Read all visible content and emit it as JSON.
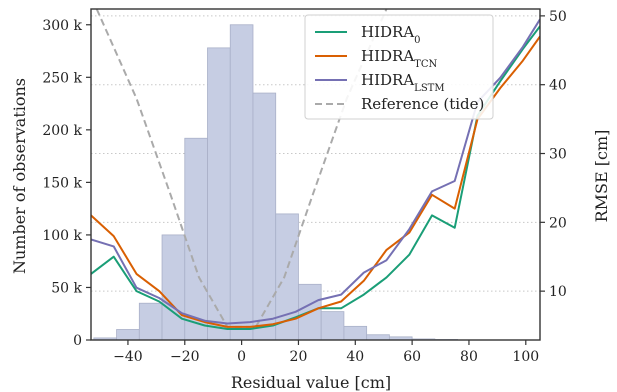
{
  "chart_data": {
    "type": "bar",
    "xlabel": "Residual value [cm]",
    "ylabel_left": "Number of observations",
    "ylabel_right": "RMSE [cm]",
    "xlim": [
      -53,
      105
    ],
    "ylim_left": [
      0,
      315000
    ],
    "ylim_right": [
      2.9,
      51
    ],
    "x_ticks": [
      -40,
      -20,
      0,
      20,
      40,
      60,
      80,
      100
    ],
    "x_tick_labels": [
      "−40",
      "−20",
      "0",
      "20",
      "40",
      "60",
      "80",
      "100"
    ],
    "left_ticks": [
      0,
      50000,
      100000,
      150000,
      200000,
      250000,
      300000
    ],
    "left_tick_labels": [
      "0",
      "50 k",
      "100 k",
      "150 k",
      "200 k",
      "250 k",
      "300 k"
    ],
    "right_ticks": [
      10,
      20,
      30,
      40,
      50
    ],
    "right_tick_labels": [
      "10",
      "20",
      "30",
      "40",
      "50"
    ],
    "grid": "dotted horizontal at right-axis ticks",
    "legend_position": "top-right",
    "histogram": {
      "bin_width": 8,
      "bin_centers": [
        -48,
        -40,
        -32,
        -24,
        -16,
        -8,
        0,
        8,
        16,
        24,
        32,
        40,
        48,
        56,
        64,
        72
      ],
      "counts": [
        2000,
        10000,
        35000,
        100000,
        192000,
        278000,
        300000,
        235000,
        120000,
        53000,
        27000,
        13000,
        5000,
        3000,
        1000,
        500
      ],
      "color": "#c6cde3"
    },
    "series": [
      {
        "name": "HIDRA",
        "subscript": "0",
        "color": "#1a9e77",
        "axis": "right",
        "x": [
          -53,
          -45,
          -37,
          -29,
          -21,
          -13,
          -5,
          3,
          11,
          19,
          27,
          35,
          43,
          51,
          59,
          67,
          75,
          83,
          91,
          99,
          105
        ],
        "y": [
          12.5,
          15.0,
          10.0,
          8.5,
          6.0,
          5.0,
          4.5,
          4.5,
          5.0,
          6.2,
          7.5,
          7.5,
          9.5,
          12.0,
          15.3,
          21.0,
          19.2,
          35.5,
          40.5,
          45.2,
          48.5
        ]
      },
      {
        "name": "HIDRA",
        "subscript": "TCN",
        "color": "#d95f02",
        "axis": "right",
        "x": [
          -53,
          -45,
          -37,
          -29,
          -21,
          -13,
          -5,
          3,
          11,
          19,
          27,
          35,
          43,
          51,
          59,
          67,
          75,
          83,
          91,
          99,
          105
        ],
        "y": [
          21.0,
          18.0,
          12.5,
          10.0,
          6.5,
          5.5,
          4.8,
          4.8,
          5.2,
          6.0,
          7.5,
          8.5,
          11.5,
          16.0,
          18.5,
          24.0,
          22.0,
          35.0,
          39.5,
          43.5,
          47.0
        ]
      },
      {
        "name": "HIDRA",
        "subscript": "LSTM",
        "color": "#7570b3",
        "axis": "right",
        "x": [
          -53,
          -45,
          -37,
          -29,
          -21,
          -13,
          -5,
          3,
          11,
          19,
          27,
          35,
          43,
          51,
          59,
          67,
          75,
          83,
          91,
          99,
          105
        ],
        "y": [
          17.5,
          16.5,
          10.5,
          9.0,
          6.8,
          5.7,
          5.3,
          5.5,
          6.0,
          7.0,
          8.7,
          9.5,
          12.7,
          14.5,
          19.0,
          24.5,
          26.0,
          37.5,
          41.0,
          45.5,
          49.5
        ]
      },
      {
        "name": "Reference (tide)",
        "subscript": "",
        "color": "#aaaaaa",
        "dashed": true,
        "axis": "right",
        "x": [
          -51,
          -37,
          -25,
          -15,
          -5,
          5,
          15,
          25,
          37,
          51
        ],
        "y": [
          51,
          38,
          24,
          12,
          4.8,
          4.8,
          12,
          24,
          38,
          51
        ]
      }
    ]
  }
}
